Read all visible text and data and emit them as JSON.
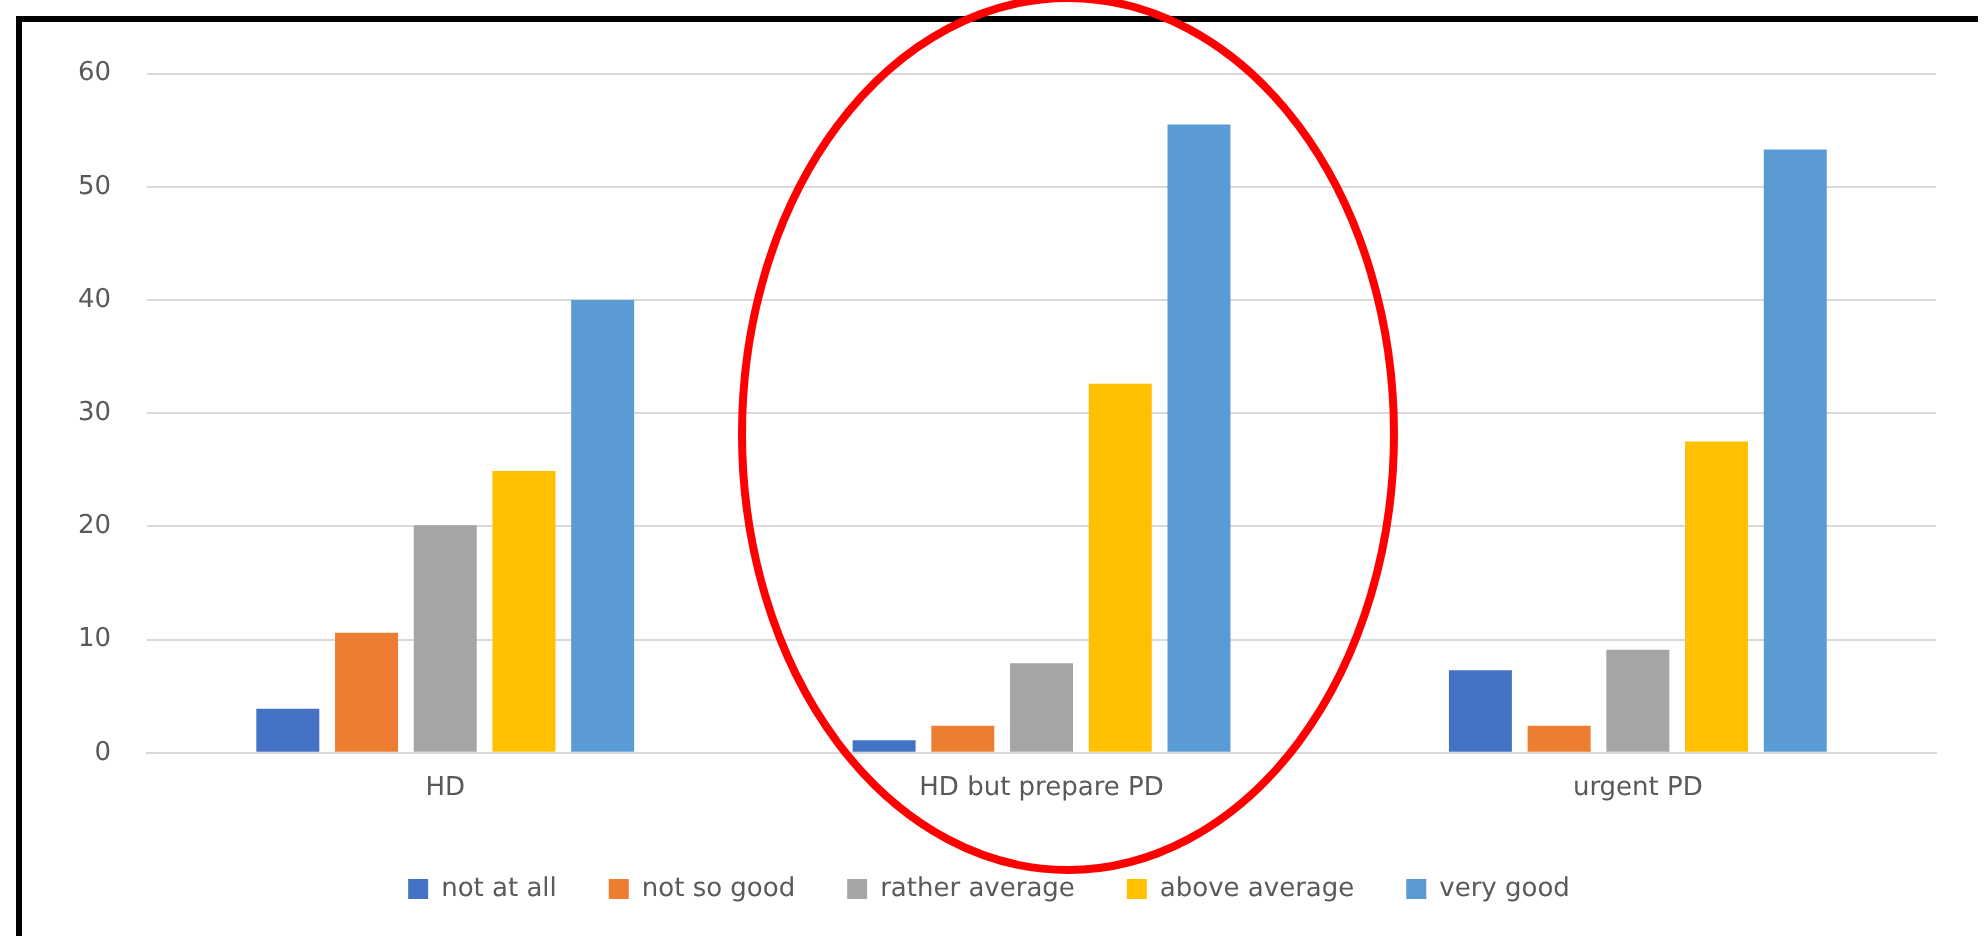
{
  "chart_data": {
    "type": "bar",
    "categories": [
      "HD",
      "HD but prepare PD",
      "urgent PD"
    ],
    "series": [
      {
        "name": "not at all",
        "color": "#4472c4",
        "values": [
          3.9,
          1.1,
          7.3
        ]
      },
      {
        "name": "not so good",
        "color": "#ed7d31",
        "values": [
          10.6,
          2.4,
          2.4
        ]
      },
      {
        "name": "rather average",
        "color": "#a5a5a5",
        "values": [
          20.1,
          7.9,
          9.1
        ]
      },
      {
        "name": "above average",
        "color": "#ffc000",
        "values": [
          24.9,
          32.6,
          27.5
        ]
      },
      {
        "name": "very good",
        "color": "#5b9bd5",
        "values": [
          40,
          55.5,
          53.3
        ]
      }
    ],
    "ylim": [
      0,
      60
    ],
    "yticks": [
      0,
      10,
      20,
      30,
      40,
      50,
      60
    ],
    "grid": "y",
    "legend": "bottom"
  }
}
